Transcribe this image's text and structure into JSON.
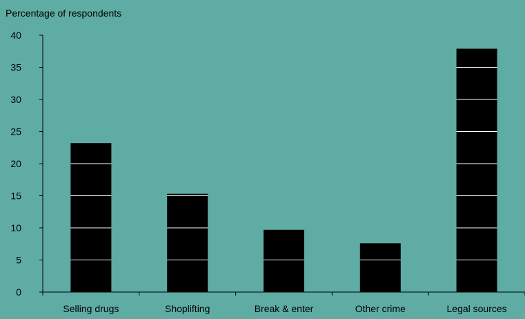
{
  "chart_data": {
    "type": "bar",
    "ylabel": "Percentage of respondents",
    "categories": [
      "Selling drugs",
      "Shoplifting",
      "Break & enter",
      "Other crime",
      "Legal sources"
    ],
    "values": [
      23.2,
      15.3,
      9.7,
      7.6,
      37.9
    ],
    "ylim": [
      0,
      40
    ],
    "yticks": [
      0,
      5,
      10,
      15,
      20,
      25,
      30,
      35,
      40
    ],
    "grid": true,
    "colors": {
      "background": "#5eaca3",
      "bar": "#000000",
      "gridline": "#ffffff"
    }
  }
}
